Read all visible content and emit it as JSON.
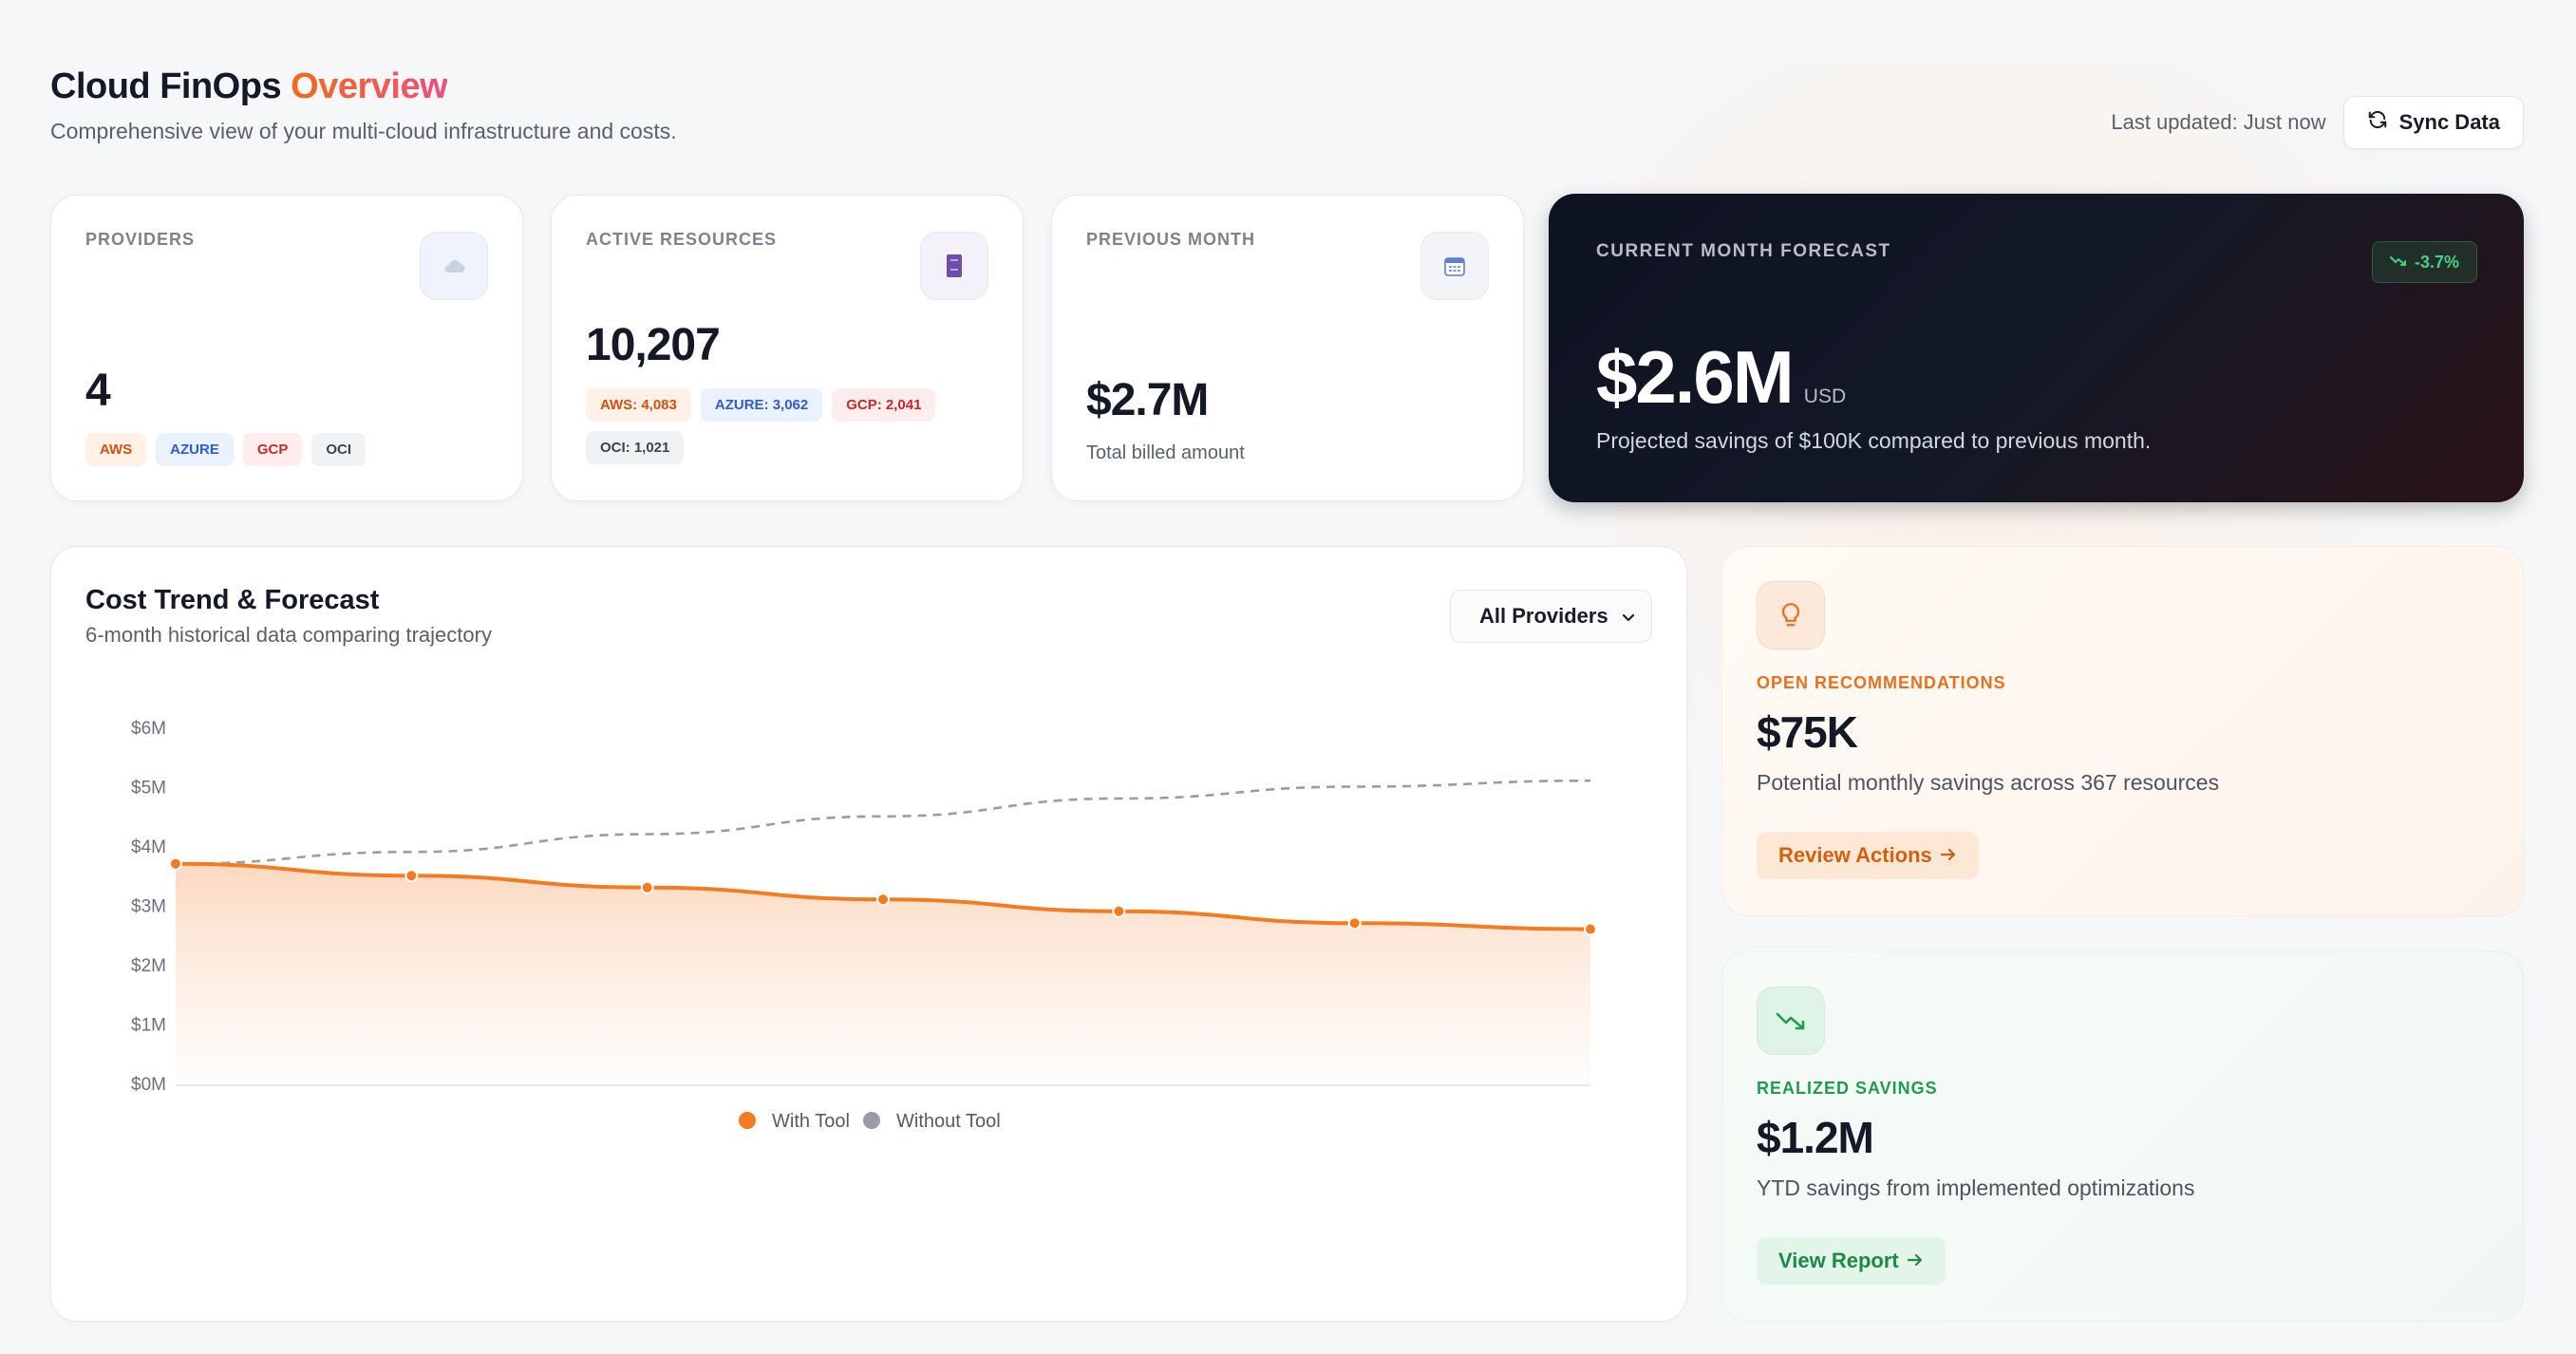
{
  "header": {
    "title_prefix": "Cloud FinOps",
    "title_accent": "Overview",
    "subtitle": "Comprehensive view of your multi-cloud infrastructure and costs.",
    "last_updated": "Last updated: Just now",
    "sync_label": "Sync Data"
  },
  "stats": {
    "providers": {
      "label": "PROVIDERS",
      "value": "4",
      "icon": "cloud-icon",
      "tags": [
        "AWS",
        "AZURE",
        "GCP",
        "OCI"
      ]
    },
    "resources": {
      "label": "ACTIVE RESOURCES",
      "value": "10,207",
      "icon": "server-icon",
      "tags": [
        "AWS: 4,083",
        "AZURE: 3,062",
        "GCP: 2,041",
        "OCI: 1,021"
      ]
    },
    "previous": {
      "label": "PREVIOUS MONTH",
      "value": "$2.7M",
      "note": "Total billed amount",
      "icon": "calendar-icon"
    },
    "forecast": {
      "label": "CURRENT MONTH FORECAST",
      "badge": "-3.7%",
      "value": "$2.6M",
      "unit": "USD",
      "note": "Projected savings of $100K compared to previous month."
    }
  },
  "chart": {
    "title": "Cost Trend & Forecast",
    "subtitle": "6-month historical data comparing trajectory",
    "select_value": "All Providers"
  },
  "chart_data": {
    "type": "line",
    "title": "Cost Trend & Forecast",
    "xlabel": "",
    "ylabel": "",
    "y_ticks": [
      "$0M",
      "$1M",
      "$2M",
      "$3M",
      "$4M",
      "$5M",
      "$6M"
    ],
    "ylim": [
      0,
      6
    ],
    "x": [
      0,
      1,
      2,
      3,
      4,
      5,
      6
    ],
    "series": [
      {
        "name": "With Tool",
        "color": "#f47b20",
        "style": "solid-area",
        "values": [
          3.7,
          3.5,
          3.3,
          3.1,
          2.9,
          2.7,
          2.6
        ]
      },
      {
        "name": "Without Tool",
        "color": "#9a9ca4",
        "style": "dashed",
        "values": [
          3.7,
          3.9,
          4.2,
          4.5,
          4.8,
          5.0,
          5.1
        ]
      }
    ],
    "legend": "bottom-center"
  },
  "recommendations": {
    "label": "OPEN RECOMMENDATIONS",
    "value": "$75K",
    "desc": "Potential monthly savings across 367 resources",
    "button": "Review Actions",
    "icon": "lightbulb-icon",
    "accent": "#e8701f"
  },
  "realized": {
    "label": "REALIZED SAVINGS",
    "value": "$1.2M",
    "desc": "YTD savings from implemented optimizations",
    "button": "View Report",
    "icon": "trending-down-icon",
    "accent": "#1f9d4e"
  }
}
